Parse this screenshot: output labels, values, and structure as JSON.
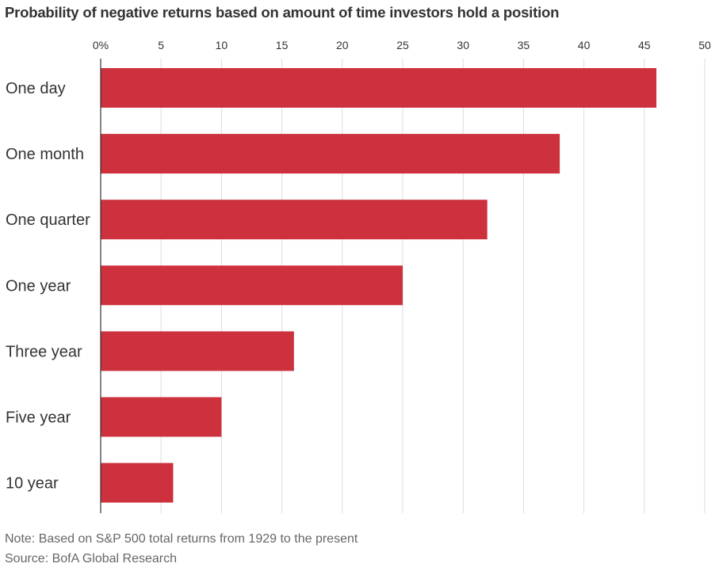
{
  "chart_data": {
    "type": "bar",
    "orientation": "horizontal",
    "title": "Probability of negative returns based on amount of time investors hold a position",
    "categories": [
      "One day",
      "One month",
      "One quarter",
      "One year",
      "Three year",
      "Five year",
      "10 year"
    ],
    "values": [
      46,
      38,
      32,
      25,
      16,
      10,
      6
    ],
    "xlim": [
      0,
      50
    ],
    "ticks": [
      "0%",
      "5",
      "10",
      "15",
      "20",
      "25",
      "30",
      "35",
      "40",
      "45",
      "50"
    ],
    "xlabel": "",
    "ylabel": "",
    "grid": true,
    "legend": "none"
  },
  "colors": {
    "bar": "#cc313d",
    "grid": "#dddddd",
    "axis": "#333333",
    "text": "#333333",
    "footer": "#666666"
  },
  "footer": {
    "note": "Note: Based on S&P 500 total returns from 1929 to the present",
    "source": "Source: BofA Global Research"
  }
}
